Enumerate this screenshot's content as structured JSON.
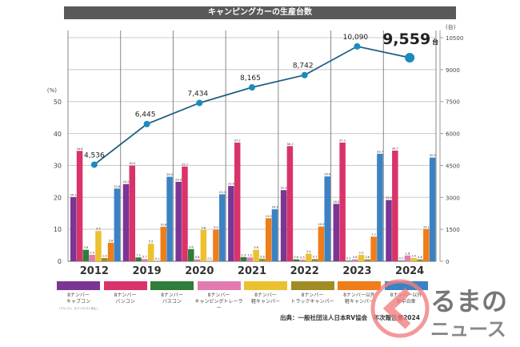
{
  "title": "キャンピングカーの生産台数",
  "source": "出典：一般社団法人日本RV協会　年次報告書2024",
  "watermark": "くるまのニュース",
  "chart_data": {
    "type": "bar",
    "title": "キャンピングカーの生産台数",
    "categories": [
      "2012",
      "2019",
      "2020",
      "2021",
      "2022",
      "2023",
      "2024"
    ],
    "left_axis": {
      "label": "(%)",
      "ylim": [
        0,
        55
      ],
      "ticks": [
        0,
        10,
        20,
        30,
        40,
        50
      ]
    },
    "right_axis": {
      "label": "(台)",
      "ylim": [
        0,
        10500
      ],
      "ticks": [
        0,
        1500,
        3000,
        4500,
        6000,
        7500,
        9000,
        10500
      ]
    },
    "grid": true,
    "series": [
      {
        "name": "8ナンバー キャブコン",
        "note": "(アルコン、セミフルコン含む)",
        "color": "#7b3593",
        "values": [
          20.1,
          24.2,
          24.9,
          23.6,
          22.3,
          18.0,
          19.2
        ]
      },
      {
        "name": "8ナンバー バンコン",
        "color": "#d9336a",
        "values": [
          34.6,
          30.0,
          29.7,
          37.2,
          36.1,
          37.2,
          34.7
        ]
      },
      {
        "name": "8ナンバー バスコン",
        "color": "#2e7d3a",
        "values": [
          3.6,
          1.2,
          3.8,
          1.3,
          0.6,
          0.2,
          0.2
        ]
      },
      {
        "name": "8ナンバー キャンピングトレーラー",
        "color": "#e27bb0",
        "values": [
          2.0,
          0.7,
          0.6,
          1.2,
          0.5,
          0.6,
          1.8
        ]
      },
      {
        "name": "8ナンバー 軽キャンパー",
        "color": "#ecc12f",
        "values": [
          9.5,
          5.5,
          9.8,
          3.6,
          2.4,
          2.0,
          1.0
        ]
      },
      {
        "name": "8ナンバー トラックキャンパー",
        "color": "#a08c25",
        "values": [
          1.0,
          0.1,
          0.1,
          0.8,
          0.7,
          0.6,
          0.6
        ]
      },
      {
        "name": "8ナンバー以外 軽キャンパー",
        "color": "#ef7d1a",
        "values": [
          5.8,
          10.8,
          9.9,
          13.5,
          10.9,
          7.7,
          10.1
        ]
      },
      {
        "name": "8ナンバー以外 車中泊車",
        "color": "#3b82c4",
        "values": [
          22.8,
          26.5,
          21.0,
          16.3,
          26.6,
          33.7,
          32.5
        ]
      }
    ],
    "line": {
      "name": "生産台数",
      "color": "#1f5f85",
      "marker_color": "#1a8bbf",
      "values": [
        4536,
        6445,
        7434,
        8165,
        8742,
        10090,
        9559
      ],
      "labels": [
        "4,536",
        "6,445",
        "7,434",
        "8,165",
        "8,742",
        "10,090",
        "9,559"
      ],
      "highlight_unit": "台"
    }
  }
}
